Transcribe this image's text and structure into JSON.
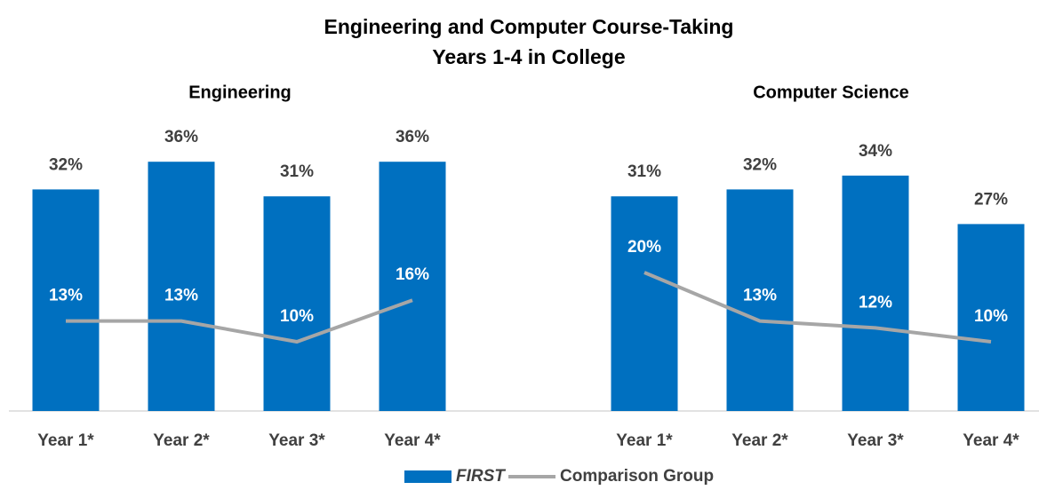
{
  "title": [
    "Engineering and Computer Course-Taking",
    "Years 1-4 in College"
  ],
  "chart_data": [
    {
      "type": "bar_line",
      "title": "Engineering",
      "categories": [
        "Year 1*",
        "Year 2*",
        "Year 3*",
        "Year 4*"
      ],
      "ylim": [
        0,
        40
      ],
      "series": [
        {
          "name": "FIRST",
          "kind": "bar",
          "color": "#0070c0",
          "values": [
            32,
            36,
            31,
            36
          ],
          "value_labels": [
            "32%",
            "36%",
            "31%",
            "36%"
          ]
        },
        {
          "name": "Comparison Group",
          "kind": "line",
          "color": "#a6a6a6",
          "values": [
            13,
            13,
            10,
            16
          ],
          "value_labels": [
            "13%",
            "13%",
            "10%",
            "16%"
          ]
        }
      ]
    },
    {
      "type": "bar_line",
      "title": "Computer Science",
      "categories": [
        "Year 1*",
        "Year 2*",
        "Year 3*",
        "Year 4*"
      ],
      "ylim": [
        0,
        40
      ],
      "series": [
        {
          "name": "FIRST",
          "kind": "bar",
          "color": "#0070c0",
          "values": [
            31,
            32,
            34,
            27
          ],
          "value_labels": [
            "31%",
            "32%",
            "34%",
            "27%"
          ]
        },
        {
          "name": "Comparison Group",
          "kind": "line",
          "color": "#a6a6a6",
          "values": [
            20,
            13,
            12,
            10
          ],
          "value_labels": [
            "20%",
            "13%",
            "12%",
            "10%"
          ]
        }
      ]
    }
  ]
}
